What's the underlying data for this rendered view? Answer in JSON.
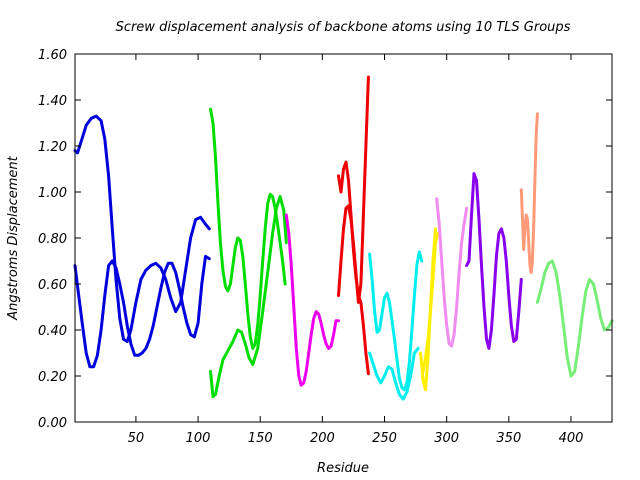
{
  "chart_data": {
    "type": "line",
    "title": "Screw displacement analysis of backbone atoms using 10 TLS Groups",
    "xlabel": "Residue",
    "ylabel": "Angstroms Displacement",
    "xlim": [
      1,
      433
    ],
    "ylim": [
      0.0,
      1.6
    ],
    "xticks": [
      50,
      100,
      150,
      200,
      250,
      300,
      350,
      400
    ],
    "yticks": [
      0.0,
      0.2,
      0.4,
      0.6,
      0.8,
      1.0,
      1.2,
      1.4,
      1.6
    ],
    "ytick_labels": [
      "0.00",
      "0.20",
      "0.40",
      "0.60",
      "0.80",
      "1.00",
      "1.20",
      "1.40",
      "1.60"
    ],
    "grid": false,
    "legend": "none",
    "series": [
      {
        "color": "#0000dd",
        "x": [
          1,
          3,
          6,
          10,
          14,
          18,
          22,
          25,
          28,
          31,
          34,
          37,
          40,
          43,
          46,
          50,
          54,
          58,
          62,
          66,
          70,
          74,
          78,
          82,
          86,
          90,
          94,
          98,
          102,
          106,
          109
        ],
        "y": [
          1.18,
          1.17,
          1.22,
          1.29,
          1.32,
          1.33,
          1.31,
          1.23,
          1.07,
          0.84,
          0.62,
          0.45,
          0.36,
          0.35,
          0.4,
          0.52,
          0.62,
          0.66,
          0.68,
          0.69,
          0.67,
          0.62,
          0.54,
          0.48,
          0.52,
          0.66,
          0.8,
          0.88,
          0.89,
          0.86,
          0.84
        ]
      },
      {
        "color": "#0000dd",
        "x": [
          1,
          4,
          7,
          10,
          13,
          16,
          19,
          22,
          25,
          28,
          31,
          34,
          37,
          40,
          43,
          46,
          49,
          52,
          55,
          58,
          61,
          64,
          67,
          70,
          73,
          76,
          79,
          82,
          85,
          88,
          91,
          94,
          97,
          100,
          103,
          106,
          109
        ],
        "y": [
          0.68,
          0.55,
          0.42,
          0.3,
          0.24,
          0.24,
          0.29,
          0.4,
          0.55,
          0.68,
          0.7,
          0.67,
          0.6,
          0.52,
          0.42,
          0.34,
          0.29,
          0.29,
          0.3,
          0.32,
          0.36,
          0.42,
          0.5,
          0.58,
          0.65,
          0.69,
          0.69,
          0.65,
          0.58,
          0.5,
          0.43,
          0.38,
          0.37,
          0.43,
          0.6,
          0.72,
          0.71
        ]
      },
      {
        "color": "#00dd00",
        "x": [
          110,
          112,
          114,
          116,
          118,
          120,
          122,
          124,
          126,
          128,
          130,
          132,
          134,
          136,
          138,
          140,
          142,
          144,
          146,
          148,
          150,
          152,
          154,
          156,
          158,
          160,
          162,
          164,
          166,
          168,
          170
        ],
        "y": [
          1.36,
          1.3,
          1.15,
          0.95,
          0.78,
          0.66,
          0.59,
          0.57,
          0.6,
          0.68,
          0.76,
          0.8,
          0.79,
          0.72,
          0.6,
          0.47,
          0.37,
          0.32,
          0.34,
          0.42,
          0.55,
          0.7,
          0.84,
          0.95,
          0.99,
          0.98,
          0.93,
          0.86,
          0.78,
          0.7,
          0.6
        ]
      },
      {
        "color": "#00dd00",
        "x": [
          110,
          112,
          114,
          117,
          120,
          124,
          128,
          132,
          135,
          138,
          141,
          144,
          148,
          152,
          156,
          160,
          163,
          166,
          169,
          171
        ],
        "y": [
          0.22,
          0.11,
          0.12,
          0.2,
          0.27,
          0.31,
          0.35,
          0.4,
          0.39,
          0.34,
          0.28,
          0.25,
          0.32,
          0.48,
          0.65,
          0.82,
          0.93,
          0.98,
          0.92,
          0.78
        ]
      },
      {
        "color": "#ee00ee",
        "x": [
          171,
          173,
          175,
          177,
          179,
          181,
          183,
          185,
          187,
          189,
          191,
          193,
          195,
          197,
          199,
          201,
          203,
          205,
          207,
          209,
          211,
          213
        ],
        "y": [
          0.9,
          0.82,
          0.68,
          0.5,
          0.32,
          0.2,
          0.16,
          0.17,
          0.22,
          0.3,
          0.38,
          0.45,
          0.48,
          0.47,
          0.43,
          0.38,
          0.34,
          0.32,
          0.33,
          0.38,
          0.44,
          0.44
        ]
      },
      {
        "color": "#ee0000",
        "x": [
          213,
          215,
          217,
          219,
          221,
          223,
          225,
          227,
          229,
          231,
          233,
          235,
          237
        ],
        "y": [
          0.55,
          0.7,
          0.84,
          0.93,
          0.94,
          0.88,
          0.78,
          0.65,
          0.52,
          0.6,
          0.9,
          1.2,
          1.5
        ]
      },
      {
        "color": "#ee0000",
        "x": [
          213,
          215,
          217,
          219,
          221,
          223,
          225,
          227,
          229,
          231,
          233,
          235,
          237
        ],
        "y": [
          1.07,
          1.0,
          1.1,
          1.13,
          1.05,
          0.9,
          0.75,
          0.63,
          0.55,
          0.52,
          0.42,
          0.3,
          0.21
        ]
      },
      {
        "color": "#00eeee",
        "x": [
          238,
          240,
          242,
          244,
          246,
          248,
          250,
          252,
          254,
          256,
          258,
          260,
          262,
          264,
          266,
          268,
          270,
          272,
          274,
          276,
          278,
          280
        ],
        "y": [
          0.73,
          0.62,
          0.48,
          0.39,
          0.4,
          0.47,
          0.54,
          0.56,
          0.52,
          0.44,
          0.36,
          0.27,
          0.19,
          0.15,
          0.14,
          0.17,
          0.26,
          0.4,
          0.55,
          0.68,
          0.74,
          0.7
        ]
      },
      {
        "color": "#00eeee",
        "x": [
          238,
          241,
          244,
          247,
          250,
          253,
          256,
          259,
          262,
          265,
          268,
          271,
          274,
          277
        ],
        "y": [
          0.3,
          0.25,
          0.2,
          0.17,
          0.2,
          0.24,
          0.23,
          0.17,
          0.12,
          0.1,
          0.13,
          0.2,
          0.3,
          0.32
        ]
      },
      {
        "color": "#ffee00",
        "x": [
          279,
          281,
          283,
          285,
          287,
          289,
          291
        ],
        "y": [
          0.3,
          0.18,
          0.14,
          0.28,
          0.5,
          0.7,
          0.84
        ]
      },
      {
        "color": "#ffee00",
        "x": [
          281,
          283,
          285,
          287,
          289,
          291,
          293
        ],
        "y": [
          0.22,
          0.28,
          0.36,
          0.48,
          0.62,
          0.78,
          0.82
        ]
      },
      {
        "color": "#f08cf0",
        "x": [
          292,
          294,
          296,
          298,
          300,
          302,
          304,
          306,
          308,
          310,
          312,
          314,
          316
        ],
        "y": [
          0.97,
          0.86,
          0.7,
          0.54,
          0.42,
          0.34,
          0.33,
          0.38,
          0.5,
          0.65,
          0.78,
          0.86,
          0.93
        ]
      },
      {
        "color": "#8800ee",
        "x": [
          316,
          318,
          320,
          322,
          324,
          326,
          328,
          330,
          332,
          334,
          336,
          338,
          340,
          342,
          344,
          346,
          348,
          350,
          352,
          354,
          356,
          358,
          360
        ],
        "y": [
          0.68,
          0.7,
          0.9,
          1.08,
          1.05,
          0.88,
          0.68,
          0.5,
          0.36,
          0.32,
          0.4,
          0.55,
          0.72,
          0.82,
          0.84,
          0.8,
          0.7,
          0.55,
          0.42,
          0.35,
          0.36,
          0.48,
          0.62
        ]
      },
      {
        "color": "#ff9977",
        "x": [
          360,
          362,
          363,
          364,
          365,
          366,
          367,
          368,
          369,
          370,
          371,
          372,
          373
        ],
        "y": [
          1.01,
          0.75,
          0.85,
          0.9,
          0.88,
          0.78,
          0.68,
          0.65,
          0.7,
          0.85,
          1.05,
          1.25,
          1.34
        ]
      },
      {
        "color": "#77ee77",
        "x": [
          373,
          376,
          379,
          382,
          385,
          388,
          391,
          394,
          397,
          400,
          403,
          406,
          409,
          412,
          415,
          418,
          421,
          424,
          427,
          430,
          433
        ],
        "y": [
          0.52,
          0.58,
          0.65,
          0.69,
          0.7,
          0.65,
          0.55,
          0.42,
          0.28,
          0.2,
          0.22,
          0.33,
          0.46,
          0.57,
          0.62,
          0.6,
          0.53,
          0.45,
          0.4,
          0.41,
          0.44
        ]
      }
    ]
  }
}
